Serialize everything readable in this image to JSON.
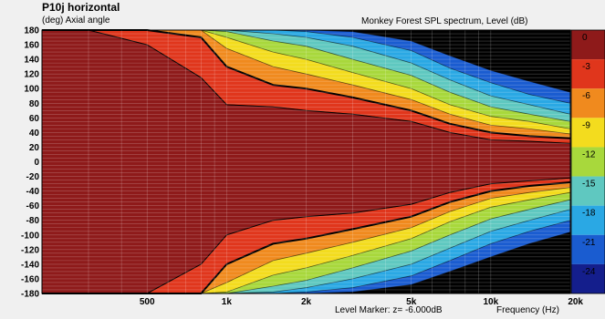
{
  "header": {
    "title": "P10j horizontal",
    "subtitle": "(deg)  Axial angle",
    "right_title": "Monkey Forest SPL spectrum, Level  (dB)"
  },
  "footer": {
    "level_marker": "Level Marker:  z= -6.000dB",
    "frequency_label": "Frequency  (Hz)"
  },
  "chart_data": {
    "type": "heatmap",
    "title": "Monkey Forest SPL spectrum, Level  (dB)",
    "xlabel": "Frequency  (Hz)",
    "ylabel": "(deg)  Axial angle",
    "x_scale": "log",
    "xlim": [
      200,
      20000
    ],
    "ylim": [
      -180,
      180
    ],
    "x_ticks": [
      {
        "label": "500",
        "value": 500
      },
      {
        "label": "1k",
        "value": 1000
      },
      {
        "label": "2k",
        "value": 2000
      },
      {
        "label": "5k",
        "value": 5000
      },
      {
        "label": "10k",
        "value": 10000
      },
      {
        "label": "20k",
        "value": 20000
      }
    ],
    "y_ticks": [
      180,
      160,
      140,
      120,
      100,
      80,
      60,
      40,
      20,
      0,
      -20,
      -40,
      -60,
      -80,
      -100,
      -120,
      -140,
      -160,
      -180
    ],
    "y_tick_labels": [
      "180",
      "160",
      "140",
      "120",
      "100",
      "80",
      "60",
      "40",
      "20",
      "0",
      "-20",
      "-40",
      "-60",
      "-80",
      "-100",
      "-120",
      "-140",
      "-160",
      "-180"
    ],
    "level_marker_db": -6,
    "colorbar": {
      "levels": [
        {
          "label": "0",
          "value": 0,
          "color": "#8e1a1a"
        },
        {
          "label": "-3",
          "value": -3,
          "color": "#e0361c"
        },
        {
          "label": "-6",
          "value": -6,
          "color": "#f08a1e"
        },
        {
          "label": "-9",
          "value": -9,
          "color": "#f3dc1e"
        },
        {
          "label": "-12",
          "value": -12,
          "color": "#a8d83c"
        },
        {
          "label": "-15",
          "value": -15,
          "color": "#5fc8c0"
        },
        {
          "label": "-18",
          "value": -18,
          "color": "#2aa8e4"
        },
        {
          "label": "-21",
          "value": -21,
          "color": "#1a5cd0"
        },
        {
          "label": "-24",
          "value": -24,
          "color": "#141e8c"
        }
      ],
      "below_min_color": "#000000"
    },
    "contour_boundaries_upper": {
      "angles_deg": [
        0,
        -3,
        -6,
        -9,
        -12,
        -15,
        -18,
        -21,
        -24
      ],
      "freqs_hz": [
        200,
        300,
        500,
        800,
        1000,
        1500,
        2000,
        3000,
        5000,
        7000,
        10000,
        14000,
        20000
      ],
      "angle_at_level": [
        [
          180,
          180,
          180,
          180,
          180,
          180,
          180,
          180,
          180,
          180,
          180,
          180,
          180
        ],
        [
          180,
          180,
          160,
          115,
          78,
          75,
          70,
          65,
          55,
          40,
          30,
          28,
          25
        ],
        [
          180,
          180,
          180,
          170,
          130,
          105,
          100,
          88,
          70,
          52,
          40,
          35,
          32
        ],
        [
          180,
          180,
          180,
          180,
          155,
          130,
          120,
          105,
          85,
          65,
          50,
          45,
          38
        ],
        [
          180,
          180,
          180,
          180,
          170,
          150,
          140,
          122,
          100,
          78,
          62,
          55,
          45
        ],
        [
          180,
          180,
          180,
          180,
          178,
          165,
          158,
          140,
          118,
          95,
          75,
          65,
          55
        ],
        [
          180,
          180,
          180,
          180,
          180,
          175,
          170,
          158,
          135,
          112,
          90,
          78,
          65
        ],
        [
          180,
          180,
          180,
          180,
          180,
          180,
          178,
          170,
          152,
          128,
          108,
          92,
          80
        ],
        [
          180,
          180,
          180,
          180,
          180,
          180,
          180,
          178,
          165,
          145,
          125,
          110,
          95
        ]
      ]
    },
    "contour_boundaries_lower": {
      "angles_deg": [
        0,
        -3,
        -6,
        -9,
        -12,
        -15,
        -18,
        -21,
        -24
      ],
      "freqs_hz": [
        200,
        300,
        500,
        800,
        1000,
        1500,
        2000,
        3000,
        5000,
        7000,
        10000,
        14000,
        20000
      ],
      "angle_at_level": [
        [
          -180,
          -180,
          -180,
          -180,
          -180,
          -180,
          -180,
          -180,
          -180,
          -180,
          -180,
          -180,
          -180
        ],
        [
          -180,
          -180,
          -180,
          -140,
          -100,
          -80,
          -75,
          -70,
          -58,
          -42,
          -30,
          -26,
          -22
        ],
        [
          -180,
          -180,
          -180,
          -180,
          -140,
          -112,
          -105,
          -92,
          -75,
          -55,
          -40,
          -33,
          -28
        ],
        [
          -180,
          -180,
          -180,
          -180,
          -165,
          -135,
          -125,
          -110,
          -90,
          -68,
          -50,
          -42,
          -35
        ],
        [
          -180,
          -180,
          -180,
          -180,
          -178,
          -155,
          -145,
          -128,
          -105,
          -82,
          -62,
          -52,
          -42
        ],
        [
          -180,
          -180,
          -180,
          -180,
          -180,
          -170,
          -162,
          -145,
          -122,
          -100,
          -78,
          -65,
          -52
        ],
        [
          -180,
          -180,
          -180,
          -180,
          -180,
          -178,
          -172,
          -160,
          -140,
          -118,
          -95,
          -80,
          -65
        ],
        [
          -180,
          -180,
          -180,
          -180,
          -180,
          -180,
          -178,
          -172,
          -156,
          -135,
          -112,
          -95,
          -80
        ],
        [
          -180,
          -180,
          -180,
          -180,
          -180,
          -180,
          -180,
          -178,
          -168,
          -150,
          -130,
          -112,
          -96
        ]
      ]
    },
    "grid": true
  }
}
